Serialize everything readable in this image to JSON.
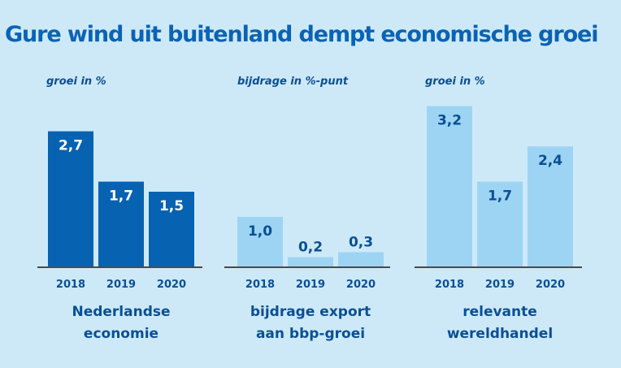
{
  "title": "Gure wind uit buitenland dempt economische groei",
  "colors": {
    "background": "#cde9f8",
    "dark_bar": "#0762b1",
    "light_bar": "#9dd4f4",
    "dark_label": "#ffffff",
    "light_label": "#0b4f94",
    "text": "#0b4f94"
  },
  "chart_data": [
    {
      "type": "bar",
      "unit_label": "groei in %",
      "categories": [
        "2018",
        "2019",
        "2020"
      ],
      "values": [
        2.7,
        1.7,
        1.5
      ],
      "value_labels": [
        "2,7",
        "1,7",
        "1,5"
      ],
      "xlabel": [
        "Nederlandse",
        "economie"
      ],
      "style": "dark"
    },
    {
      "type": "bar",
      "unit_label": "bijdrage in %-punt",
      "categories": [
        "2018",
        "2019",
        "2020"
      ],
      "values": [
        1.0,
        0.2,
        0.3
      ],
      "value_labels": [
        "1,0",
        "0,2",
        "0,3"
      ],
      "xlabel": [
        "bijdrage export",
        "aan bbp-groei"
      ],
      "style": "light"
    },
    {
      "type": "bar",
      "unit_label": "groei in %",
      "categories": [
        "2018",
        "2019",
        "2020"
      ],
      "values": [
        3.2,
        1.7,
        2.4
      ],
      "value_labels": [
        "3,2",
        "1,7",
        "2,4"
      ],
      "xlabel": [
        "relevante",
        "wereldhandel"
      ],
      "style": "light"
    }
  ]
}
